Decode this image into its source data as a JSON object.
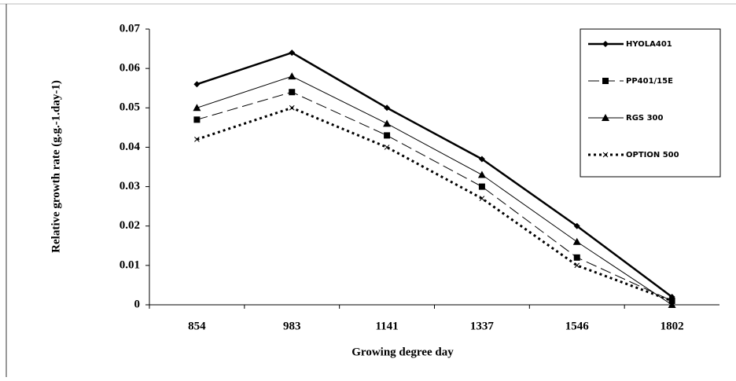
{
  "chart_data": {
    "type": "line",
    "x_label": "Growing degree day",
    "y_label": "Relative growth rate (g.g.-1.day-1)",
    "categories": [
      "854",
      "983",
      "1141",
      "1337",
      "1546",
      "1802"
    ],
    "series": [
      {
        "name": "HYOLA401",
        "color": "#000000",
        "width": 2.5,
        "dash": "none",
        "marker": "diamond",
        "values": [
          0.056,
          0.064,
          0.05,
          0.037,
          0.02,
          0.002
        ]
      },
      {
        "name": "PP401/15E",
        "color": "#000000",
        "width": 1,
        "dash": "14 6",
        "marker": "square",
        "values": [
          0.047,
          0.054,
          0.043,
          0.03,
          0.012,
          0.001
        ]
      },
      {
        "name": "RGS 300",
        "color": "#000000",
        "width": 1,
        "dash": "none",
        "marker": "triangle",
        "values": [
          0.05,
          0.058,
          0.046,
          0.033,
          0.016,
          0.0
        ]
      },
      {
        "name": "OPTION 500",
        "color": "#000000",
        "width": 3,
        "dash": "3 4",
        "marker": "x",
        "values": [
          0.042,
          0.05,
          0.04,
          0.027,
          0.01,
          0.001
        ]
      }
    ],
    "ylim": [
      0,
      0.07
    ],
    "yticks": [
      0,
      0.01,
      0.02,
      0.03,
      0.04,
      0.05,
      0.06,
      0.07
    ],
    "legend": "top-right"
  }
}
